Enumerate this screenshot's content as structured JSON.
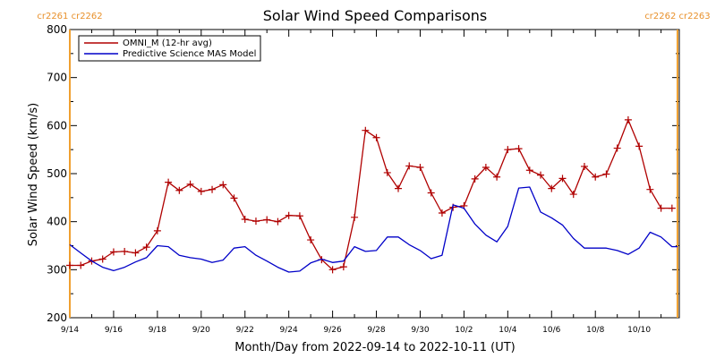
{
  "chart_data": {
    "type": "line",
    "title": "Solar Wind Speed Comparisons",
    "xlabel": "Month/Day from 2022-09-14 to 2022-10-11 (UT)",
    "ylabel": "Solar Wind Speed (km/s)",
    "ylim": [
      200,
      800
    ],
    "xlim": [
      "2022-09-14",
      "2022-10-11T20:00"
    ],
    "yticks": [
      "200",
      "300",
      "400",
      "500",
      "600",
      "700",
      "800"
    ],
    "xticks": [
      "9/14",
      "9/16",
      "9/18",
      "9/20",
      "9/22",
      "9/24",
      "9/26",
      "9/28",
      "9/30",
      "10/2",
      "10/4",
      "10/6",
      "10/8",
      "10/10"
    ],
    "xtick_dates": [
      "2022-09-14",
      "2022-09-16",
      "2022-09-18",
      "2022-09-20",
      "2022-09-22",
      "2022-09-24",
      "2022-09-26",
      "2022-09-28",
      "2022-09-30",
      "2022-10-02",
      "2022-10-04",
      "2022-10-06",
      "2022-10-08",
      "2022-10-10"
    ],
    "carrington_markers": [
      {
        "date": "2022-09-14",
        "label": "cr2261 cr2262",
        "side": "left"
      },
      {
        "date": "2022-10-11T18:00",
        "label": "cr2262 cr2263",
        "side": "right"
      }
    ],
    "legend_position": "top-left",
    "series": [
      {
        "name": "OMNI_M (12-hr avg)",
        "color": "#b00000",
        "marker": "plus",
        "x": [
          "2022-09-14T00:00",
          "2022-09-14T12:00",
          "2022-09-15T00:00",
          "2022-09-15T12:00",
          "2022-09-16T00:00",
          "2022-09-16T12:00",
          "2022-09-17T00:00",
          "2022-09-17T12:00",
          "2022-09-18T00:00",
          "2022-09-18T12:00",
          "2022-09-19T00:00",
          "2022-09-19T12:00",
          "2022-09-20T00:00",
          "2022-09-20T12:00",
          "2022-09-21T00:00",
          "2022-09-21T12:00",
          "2022-09-22T00:00",
          "2022-09-22T12:00",
          "2022-09-23T00:00",
          "2022-09-23T12:00",
          "2022-09-24T00:00",
          "2022-09-24T12:00",
          "2022-09-25T00:00",
          "2022-09-25T12:00",
          "2022-09-26T00:00",
          "2022-09-26T12:00",
          "2022-09-27T00:00",
          "2022-09-27T12:00",
          "2022-09-28T00:00",
          "2022-09-28T12:00",
          "2022-09-29T00:00",
          "2022-09-29T12:00",
          "2022-09-30T00:00",
          "2022-09-30T12:00",
          "2022-10-01T00:00",
          "2022-10-01T12:00",
          "2022-10-02T00:00",
          "2022-10-02T12:00",
          "2022-10-03T00:00",
          "2022-10-03T12:00",
          "2022-10-04T00:00",
          "2022-10-04T12:00",
          "2022-10-05T00:00",
          "2022-10-05T12:00",
          "2022-10-06T00:00",
          "2022-10-06T12:00",
          "2022-10-07T00:00",
          "2022-10-07T12:00",
          "2022-10-08T00:00",
          "2022-10-08T12:00",
          "2022-10-09T00:00",
          "2022-10-09T12:00",
          "2022-10-10T00:00",
          "2022-10-10T12:00",
          "2022-10-11T00:00",
          "2022-10-11T12:00"
        ],
        "values": [
          309,
          309,
          318,
          322,
          337,
          338,
          335,
          347,
          381,
          482,
          465,
          478,
          463,
          467,
          477,
          449,
          405,
          401,
          404,
          400,
          413,
          412,
          362,
          321,
          300,
          306,
          409,
          590,
          575,
          502,
          469,
          516,
          513,
          460,
          418,
          430,
          433,
          489,
          513,
          493,
          550,
          552,
          507,
          497,
          469,
          490,
          457,
          515,
          493,
          499,
          553,
          612,
          557,
          467,
          428,
          428
        ]
      },
      {
        "name": "Predictive Science MAS Model",
        "color": "#0000c8",
        "marker": "none",
        "x": [
          "2022-09-14T00:00",
          "2022-09-14T12:00",
          "2022-09-15T00:00",
          "2022-09-15T12:00",
          "2022-09-16T00:00",
          "2022-09-16T12:00",
          "2022-09-17T00:00",
          "2022-09-17T12:00",
          "2022-09-18T00:00",
          "2022-09-18T12:00",
          "2022-09-19T00:00",
          "2022-09-19T12:00",
          "2022-09-20T00:00",
          "2022-09-20T12:00",
          "2022-09-21T00:00",
          "2022-09-21T12:00",
          "2022-09-22T00:00",
          "2022-09-22T12:00",
          "2022-09-23T00:00",
          "2022-09-23T12:00",
          "2022-09-24T00:00",
          "2022-09-24T12:00",
          "2022-09-25T00:00",
          "2022-09-25T12:00",
          "2022-09-26T00:00",
          "2022-09-26T12:00",
          "2022-09-27T00:00",
          "2022-09-27T12:00",
          "2022-09-28T00:00",
          "2022-09-28T12:00",
          "2022-09-29T00:00",
          "2022-09-29T12:00",
          "2022-09-30T00:00",
          "2022-09-30T12:00",
          "2022-10-01T00:00",
          "2022-10-01T12:00",
          "2022-10-02T00:00",
          "2022-10-02T12:00",
          "2022-10-03T00:00",
          "2022-10-03T12:00",
          "2022-10-04T00:00",
          "2022-10-04T12:00",
          "2022-10-05T00:00",
          "2022-10-05T12:00",
          "2022-10-06T00:00",
          "2022-10-06T12:00",
          "2022-10-07T00:00",
          "2022-10-07T12:00",
          "2022-10-08T00:00",
          "2022-10-08T12:00",
          "2022-10-09T00:00",
          "2022-10-09T12:00",
          "2022-10-10T00:00",
          "2022-10-10T12:00",
          "2022-10-11T00:00",
          "2022-10-11T12:00",
          "2022-10-11T18:00"
        ],
        "values": [
          352,
          335,
          318,
          305,
          298,
          305,
          316,
          325,
          350,
          348,
          330,
          325,
          322,
          315,
          320,
          345,
          348,
          330,
          318,
          305,
          295,
          297,
          314,
          322,
          315,
          318,
          348,
          338,
          340,
          368,
          368,
          352,
          340,
          323,
          330,
          435,
          428,
          395,
          372,
          358,
          390,
          470,
          472,
          420,
          408,
          393,
          365,
          345,
          345,
          345,
          340,
          332,
          345,
          378,
          368,
          348,
          348
        ]
      }
    ]
  }
}
